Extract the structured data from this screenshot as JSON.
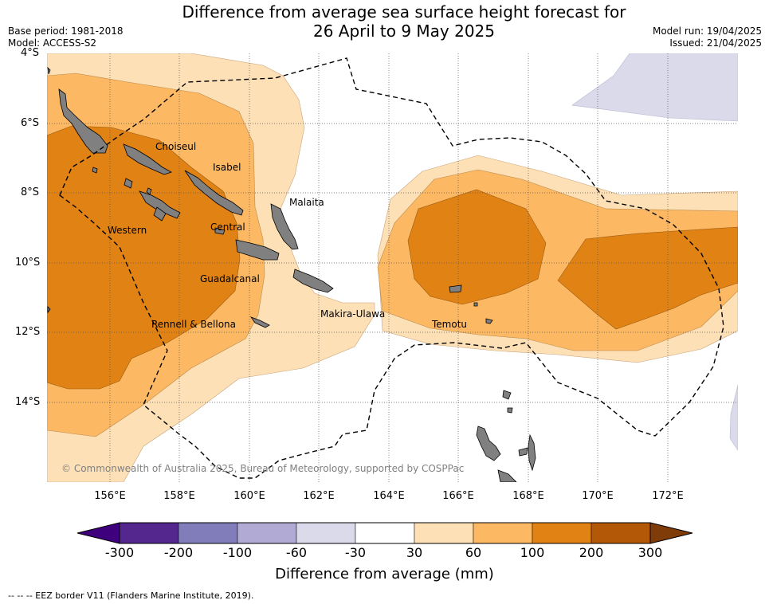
{
  "header": {
    "title_line1": "Difference from average sea surface height forecast for",
    "title_line2": "26 April to 9 May 2025",
    "base_period": "Base period: 1981-2018",
    "model": "Model: ACCESS-S2",
    "model_run": "Model run: 19/04/2025",
    "issued": "Issued: 21/04/2025"
  },
  "map": {
    "latitude_labels": [
      "4°S",
      "6°S",
      "8°S",
      "10°S",
      "12°S",
      "14°S"
    ],
    "longitude_labels": [
      "156°E",
      "158°E",
      "160°E",
      "162°E",
      "164°E",
      "166°E",
      "168°E",
      "170°E",
      "172°E"
    ],
    "places": [
      "Choiseul",
      "Isabel",
      "Malaita",
      "Western",
      "Central",
      "Guadalcanal",
      "Makira-Ulawa",
      "Rennell & Bellona",
      "Temotu"
    ],
    "copyright": "© Commonwealth of Australia 2025, Bureau of Meteorology, supported by COSPPac"
  },
  "legend": {
    "ticks": [
      "-300",
      "-200",
      "-100",
      "-60",
      "-30",
      "30",
      "60",
      "100",
      "200",
      "300"
    ],
    "colors": [
      "#3f007d",
      "#54278f",
      "#807dba",
      "#b0aad4",
      "#dadaeb",
      "#ffffff",
      "#fee0b6",
      "#fdb863",
      "#e08214",
      "#b35806",
      "#7f3b08"
    ],
    "title": "Difference from average (mm)"
  },
  "footnote": "--  --  -- EEZ border V11 (Flanders Marine Institute, 2019)."
}
